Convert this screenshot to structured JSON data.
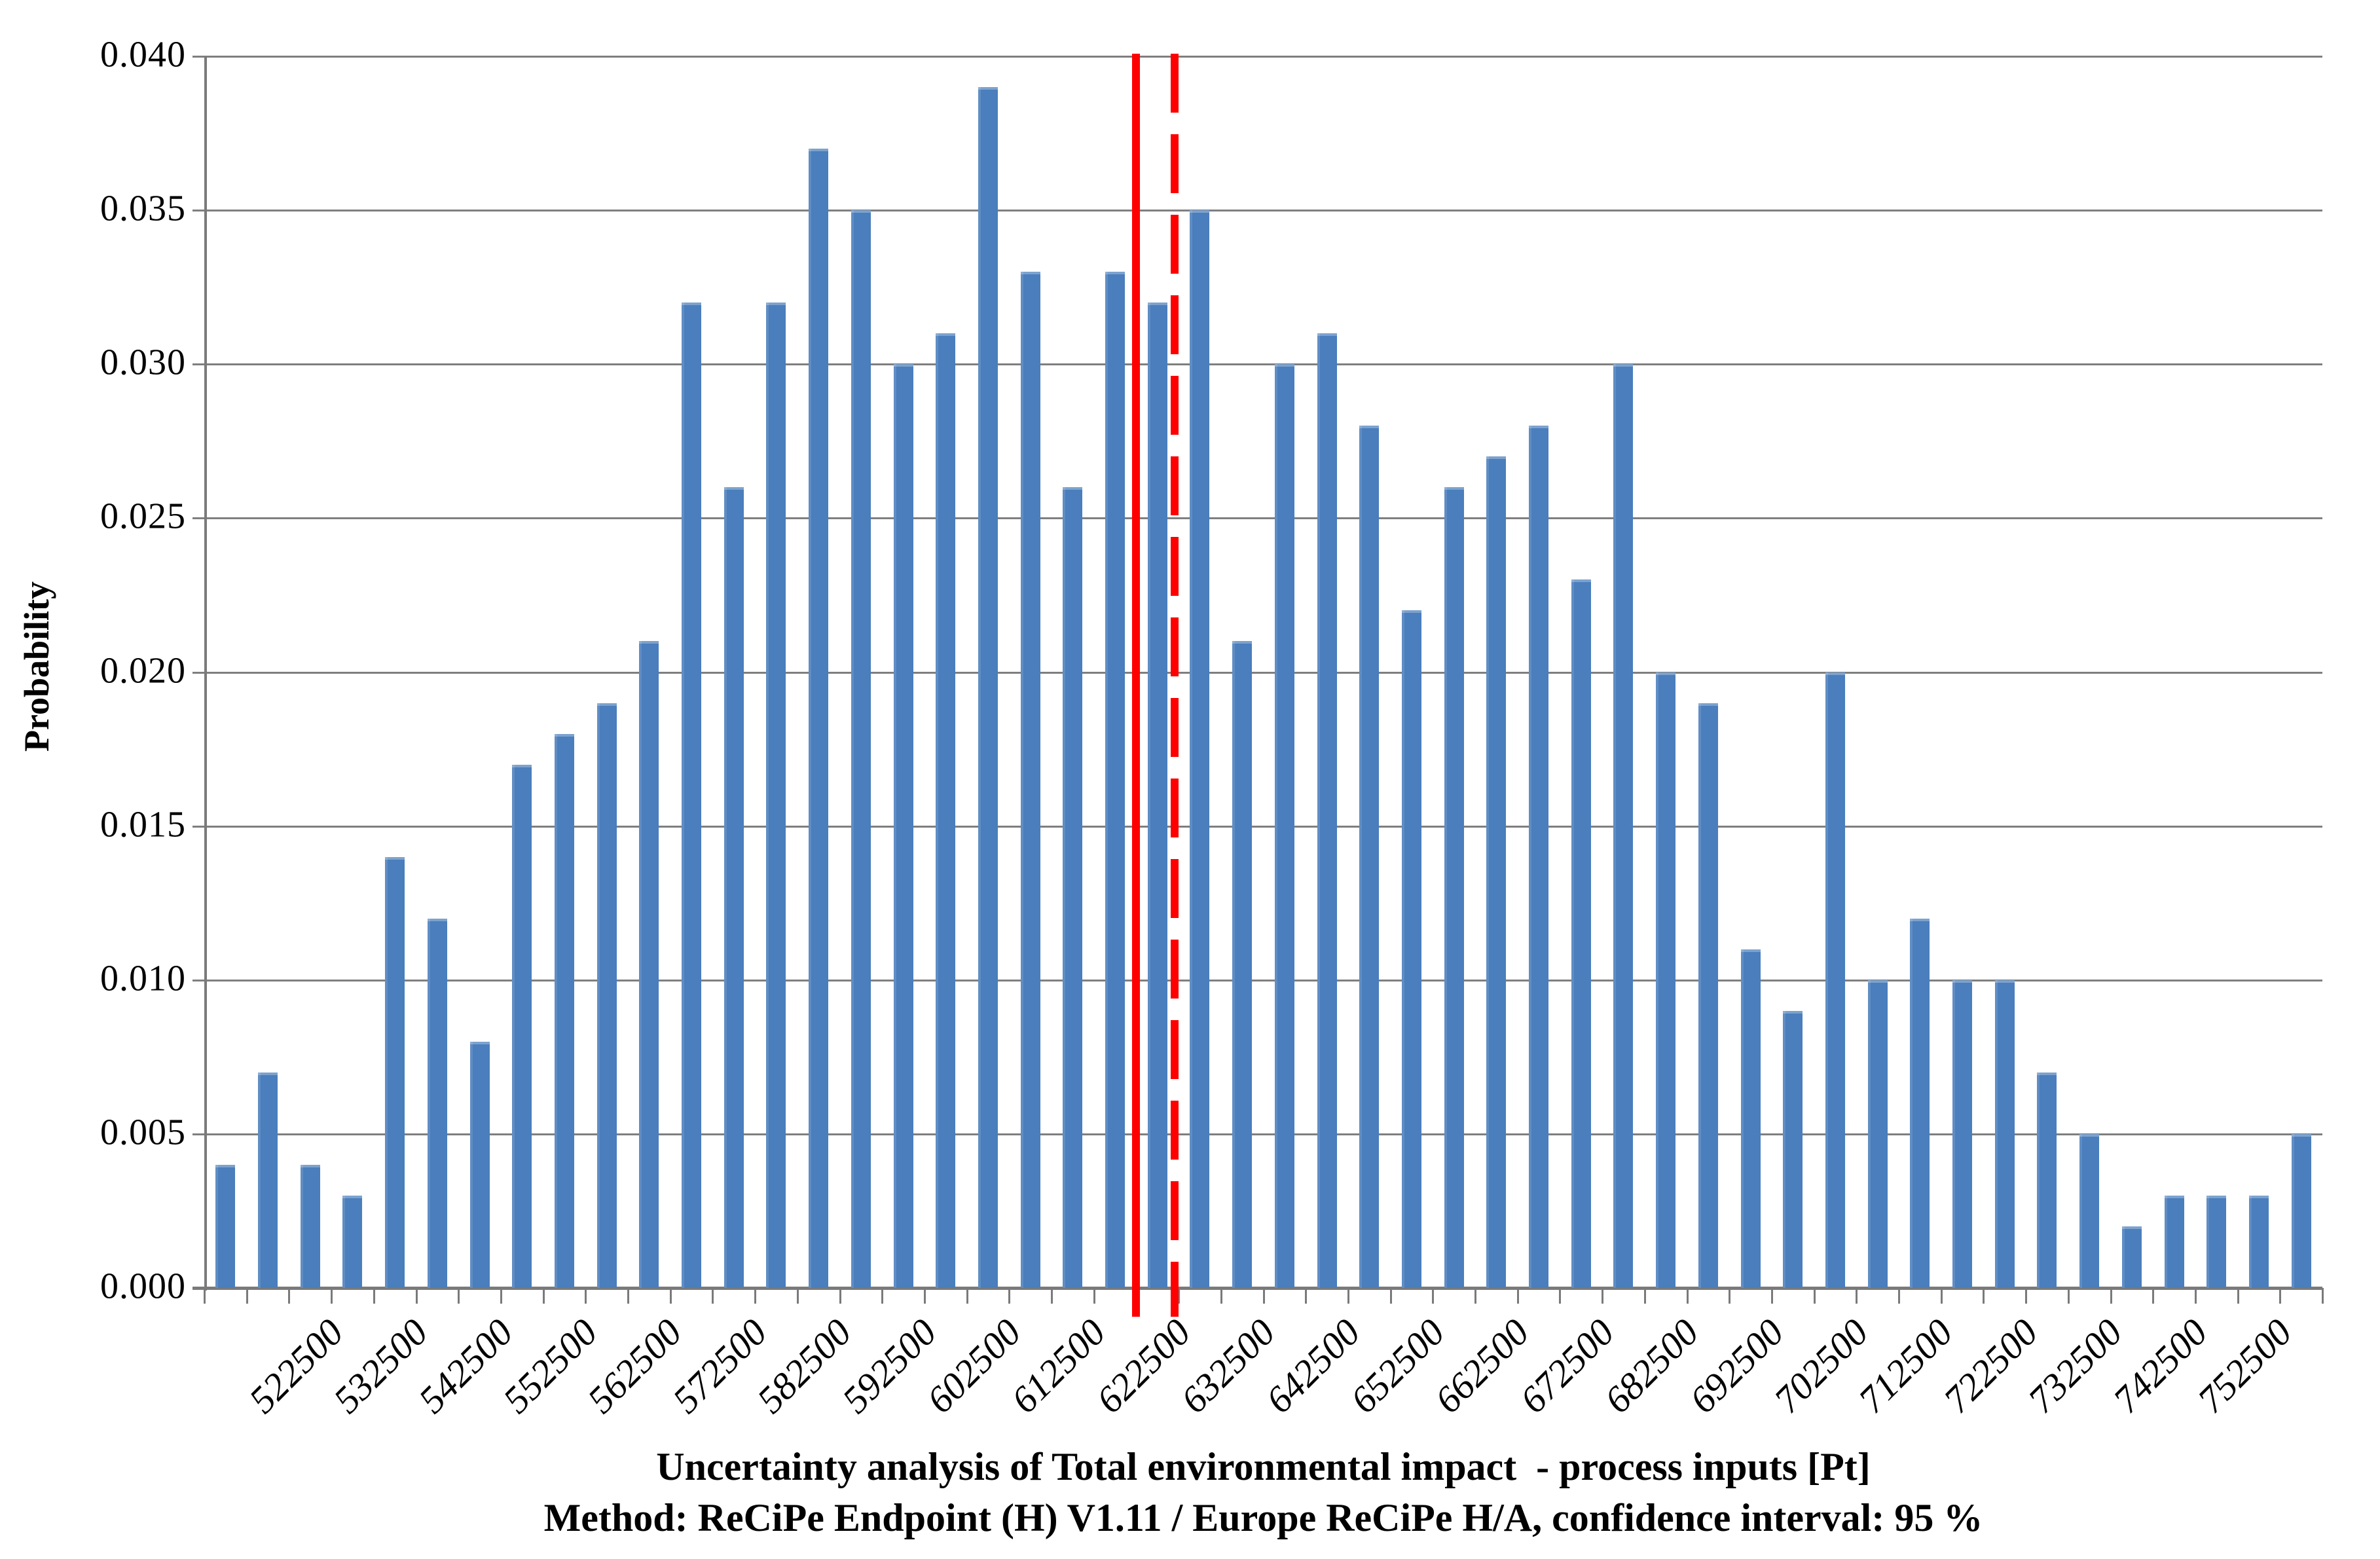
{
  "chart_data": {
    "type": "bar",
    "title_line1": "Uncertainty analysis of Total environmental impact  - process inputs [Pt]",
    "title_line2": "Method: ReCiPe Endpoint (H) V1.11 / Europe ReCiPe H/A, confidence interval: 95 %",
    "ylabel": "Probability",
    "xlabel": "",
    "ylim": [
      0,
      0.04
    ],
    "xlim": [
      510000,
      760000
    ],
    "grid": true,
    "legend": false,
    "bin_width": 5000,
    "y_tick_labels": [
      "0.000",
      "0.005",
      "0.010",
      "0.015",
      "0.020",
      "0.025",
      "0.030",
      "0.035",
      "0.040"
    ],
    "categories": [
      512500,
      517500,
      522500,
      527500,
      532500,
      537500,
      542500,
      547500,
      552500,
      557500,
      562500,
      567500,
      572500,
      577500,
      582500,
      587500,
      592500,
      597500,
      602500,
      607500,
      612500,
      617500,
      622500,
      627500,
      632500,
      637500,
      642500,
      647500,
      652500,
      657500,
      662500,
      667500,
      672500,
      677500,
      682500,
      687500,
      692500,
      697500,
      702500,
      707500,
      712500,
      717500,
      722500,
      727500,
      732500,
      737500,
      742500,
      747500,
      752500,
      757500
    ],
    "values": [
      0.004,
      0.007,
      0.004,
      0.003,
      0.014,
      0.012,
      0.008,
      0.017,
      0.018,
      0.019,
      0.021,
      0.032,
      0.026,
      0.032,
      0.037,
      0.035,
      0.03,
      0.031,
      0.039,
      0.033,
      0.026,
      0.033,
      0.032,
      0.035,
      0.021,
      0.03,
      0.031,
      0.028,
      0.022,
      0.026,
      0.027,
      0.028,
      0.023,
      0.03,
      0.02,
      0.019,
      0.011,
      0.009,
      0.02,
      0.01,
      0.012,
      0.01,
      0.01,
      0.007,
      0.005,
      0.002,
      0.003,
      0.003,
      0.003,
      0.005
    ],
    "x_tick_labels": [
      "522500",
      "532500",
      "542500",
      "552500",
      "562500",
      "572500",
      "582500",
      "592500",
      "602500",
      "612500",
      "622500",
      "632500",
      "642500",
      "652500",
      "662500",
      "672500",
      "682500",
      "692500",
      "702500",
      "712500",
      "722500",
      "732500",
      "742500",
      "752500"
    ],
    "first_labeled_category_index": 2,
    "label_step": 2,
    "reference_lines": [
      {
        "style": "solid",
        "x": 620000,
        "color": "#FE0000"
      },
      {
        "style": "dashed",
        "x": 624500,
        "color": "#FE0000"
      }
    ],
    "bar_color": "#4A7EBC",
    "grid_color": "#7F7F7F",
    "background_color": "#FFFFFF"
  }
}
